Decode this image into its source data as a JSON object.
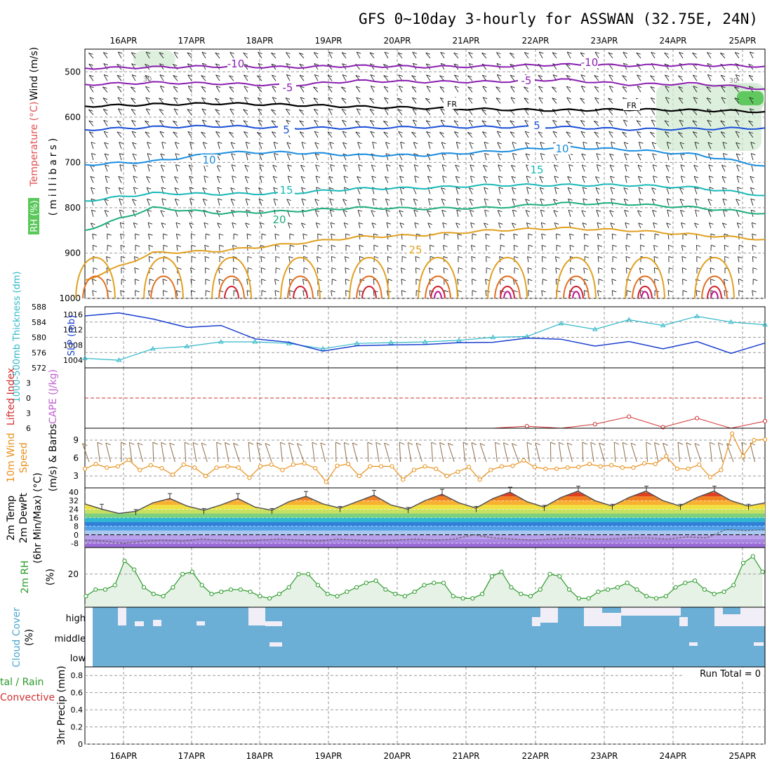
{
  "title": "GFS 0~10day 3-hourly for ASSWAN (32.75E, 24N)",
  "dates": [
    "16APR",
    "17APR",
    "18APR",
    "19APR",
    "20APR",
    "21APR",
    "22APR",
    "23APR",
    "24APR",
    "25APR"
  ],
  "colors": {
    "temp_minus10": "#8a1fb0",
    "temp_minus5": "#8a1fb0",
    "freezing": "#000000",
    "temp_5": "#1a4fd6",
    "temp_10": "#1a8de0",
    "temp_15": "#19b8b8",
    "temp_20": "#1fae7c",
    "temp_25": "#e0a020",
    "temp_hot": "#d02030",
    "slp": "#1a3fd0",
    "thickness": "#30b8c8",
    "wind10": "#e8901a",
    "barb": "#8b6b4a",
    "rh2m": "#2a9a2a",
    "rh2m_fill": "#e6f2e6",
    "cloud": "#6baed6",
    "cloud_gap": "#f2eef8",
    "lifted": "#d03030"
  },
  "labels": {
    "upper_rh": "RH (%)",
    "upper_temp": "Temperature (°C)",
    "upper_wind": "Wind (m/s)",
    "upper_unit": "(millibars)",
    "thk_label": "1000-500mb Thickness (dm)",
    "slp_label": "SLP (mb)",
    "li_label": "Lifted Index",
    "cape_label": "CAPE (J/kg)",
    "wind10_label_1": "10m Wind",
    "wind10_label_2": "Speed",
    "wind10_label_3": "(m/s) & Barbs",
    "temp2m_label_1": "2m Temp",
    "temp2m_label_2": "2m DewPt",
    "temp2m_label_3": "(6hr Min/Max) (°C)",
    "rh2m_label": "2m RH",
    "rh2m_unit": "(%)",
    "cloud_label": "Cloud Cover",
    "cloud_unit": "(%)",
    "precip_label_1": "tal / Rain",
    "precip_label_2": "Convective",
    "precip_label_3": "3hr Precip (mm)",
    "run_total": "Run Total = 0"
  },
  "chart_data": [
    {
      "type": "line",
      "panel": "upper-air",
      "ylabel": "(millibars)",
      "yticks": [
        500,
        600,
        700,
        800,
        900,
        1000
      ],
      "ylim": [
        1000,
        450
      ],
      "contour_labels": [
        {
          "text": "-10",
          "level": -10
        },
        {
          "text": "-10",
          "level": -10
        },
        {
          "text": "-5",
          "level": -5
        },
        {
          "text": "-5",
          "level": -5
        },
        {
          "text": "FR",
          "level": 0
        },
        {
          "text": "FR",
          "level": 0
        },
        {
          "text": "5",
          "level": 5
        },
        {
          "text": "5",
          "level": 5
        },
        {
          "text": "10",
          "level": 10
        },
        {
          "text": "10",
          "level": 10
        },
        {
          "text": "15",
          "level": 15
        },
        {
          "text": "15",
          "level": 15
        },
        {
          "text": "20",
          "level": 20
        },
        {
          "text": "25",
          "level": 25
        }
      ],
      "rh_labels": [
        "30",
        "30"
      ],
      "isotherm_pressure": {
        "minus10": [
          492,
          490,
          488,
          490,
          487,
          489,
          488,
          484,
          486,
          485,
          488
        ],
        "minus5": [
          528,
          524,
          526,
          530,
          520,
          522,
          522,
          517,
          528,
          526,
          538
        ],
        "freezing": [
          576,
          572,
          570,
          573,
          577,
          580,
          583,
          585,
          583,
          585,
          588
        ],
        "plus5": [
          628,
          622,
          620,
          624,
          624,
          622,
          622,
          622,
          627,
          626,
          624
        ],
        "plus10": [
          705,
          698,
          678,
          678,
          684,
          684,
          676,
          666,
          672,
          683,
          708
        ],
        "plus15": [
          785,
          768,
          770,
          768,
          758,
          756,
          750,
          750,
          750,
          756,
          773
        ],
        "plus20": [
          850,
          800,
          812,
          808,
          800,
          802,
          800,
          790,
          792,
          800,
          813
        ],
        "plus25": [
          960,
          900,
          895,
          880,
          865,
          860,
          850,
          845,
          850,
          860,
          870
        ]
      }
    },
    {
      "type": "line",
      "panel": "slp-thickness",
      "x": [
        "15APR12",
        "16APR00",
        "16APR12",
        "17APR00",
        "17APR12",
        "18APR00",
        "18APR12",
        "19APR00",
        "19APR12",
        "20APR00",
        "20APR12",
        "21APR00",
        "21APR12",
        "22APR00",
        "22APR12",
        "23APR00",
        "23APR12",
        "24APR00",
        "24APR12",
        "25APR00",
        "25APR06"
      ],
      "series": [
        {
          "name": "SLP (mb)",
          "axis": "right",
          "ylim": [
            1002,
            1018
          ],
          "yticks": [
            1004,
            1008,
            1012,
            1016
          ],
          "values": [
            1015.6,
            1016.4,
            1014.8,
            1012.6,
            1013.1,
            1009.6,
            1008.7,
            1006.4,
            1007.8,
            1008.0,
            1008.1,
            1008.6,
            1008.7,
            1009.8,
            1009.5,
            1007.7,
            1008.9,
            1007.0,
            1008.9,
            1005.8,
            1008.5
          ]
        },
        {
          "name": "1000-500mb Thickness (dm)",
          "axis": "left",
          "ylim": [
            572,
            588
          ],
          "yticks": [
            572,
            576,
            580,
            584,
            588
          ],
          "values": [
            574.5,
            574.0,
            577.0,
            577.6,
            578.8,
            578.8,
            578.4,
            577.0,
            578.4,
            578.6,
            578.8,
            579.2,
            580.0,
            580.2,
            583.6,
            582.1,
            584.6,
            583.1,
            585.5,
            584.0,
            583.3
          ]
        }
      ]
    },
    {
      "type": "line",
      "panel": "lifted-index-cape",
      "ylim": [
        6,
        -6
      ],
      "yticks": [
        -3,
        0,
        3,
        6
      ],
      "ytick_labels": [
        "3",
        "0",
        "3",
        "6"
      ],
      "zero_line": 0,
      "series": [
        {
          "name": "Lifted Index",
          "values": [
            6,
            6,
            6,
            6,
            6,
            6,
            6,
            6,
            6,
            6,
            6,
            6,
            6,
            5.6,
            6,
            5.2,
            3.7,
            5.8,
            4.0,
            6,
            4.6
          ]
        }
      ]
    },
    {
      "type": "line",
      "panel": "wind10m",
      "ylabel": "(m/s)",
      "ylim": [
        1,
        11
      ],
      "yticks": [
        3,
        6,
        9
      ],
      "series": [
        {
          "name": "10m Wind Speed",
          "values": [
            4.2,
            5.0,
            4.4,
            4.6,
            5.7,
            4.0,
            4.8,
            4.3,
            3.2,
            4.9,
            4.4,
            3.0,
            4.4,
            4.6,
            4.4,
            2.7,
            4.6,
            4.9,
            4.0,
            4.9,
            5.1,
            4.3,
            2.0,
            4.7,
            5.0,
            3.0,
            4.6,
            4.6,
            4.6,
            2.4,
            4.0,
            4.6,
            4.2,
            3.0,
            3.7,
            4.5,
            2.4,
            4.0,
            4.6,
            4.7,
            5.6,
            4.5,
            4.2,
            4.2,
            4.4,
            4.5,
            5.0,
            4.6,
            4.8,
            4.4,
            4.4,
            5.1,
            5.0,
            6.3,
            4.2,
            4.2,
            4.9,
            2.8,
            4.0,
            10.1,
            6.3,
            9.0,
            9.1
          ]
        }
      ]
    },
    {
      "type": "area",
      "panel": "temp2m",
      "ylabel": "(°C)",
      "ylim": [
        -12,
        44
      ],
      "yticks": [
        -8,
        0,
        8,
        16,
        24,
        32,
        40
      ],
      "series": [
        {
          "name": "2m Temp",
          "values": [
            29,
            24,
            20,
            22,
            30,
            34,
            27,
            23,
            28,
            34,
            26,
            23,
            31,
            36,
            29,
            25,
            31,
            37,
            28,
            24,
            32,
            38,
            30,
            25,
            34,
            40,
            31,
            26,
            35,
            41,
            32,
            27,
            35,
            41,
            32,
            27,
            35,
            41,
            32,
            27,
            30
          ]
        },
        {
          "name": "2m DewPt",
          "values": [
            -5,
            -6,
            -8,
            -6,
            -5,
            -6,
            -4,
            -5,
            -6,
            -5,
            -4,
            -5,
            -6,
            -4,
            -5,
            -6,
            -5,
            -4,
            -5,
            -4,
            0,
            -3,
            -4,
            -5,
            -4,
            -3,
            -4,
            -4,
            -3,
            -3,
            -4,
            -2,
            -3,
            5,
            4,
            5
          ]
        }
      ]
    },
    {
      "type": "area",
      "panel": "rh2m",
      "ylabel": "(%)",
      "ylim": [
        5,
        32
      ],
      "yticks": [
        20
      ],
      "series": [
        {
          "name": "2m RH",
          "values": [
            10,
            13,
            13,
            15,
            26,
            22,
            14,
            11,
            10,
            14,
            20,
            21,
            15,
            11,
            12,
            13,
            13,
            12,
            10,
            9,
            11,
            14,
            20,
            20,
            15,
            11,
            10,
            12,
            14,
            16,
            17,
            13,
            11,
            10,
            12,
            15,
            16,
            16,
            10,
            9,
            9,
            11,
            19,
            21,
            14,
            11,
            10,
            13,
            20,
            19,
            13,
            9,
            9,
            12,
            13,
            14,
            16,
            13,
            10,
            9,
            10,
            14,
            16,
            17,
            13,
            11,
            12,
            15,
            25,
            28,
            21
          ]
        }
      ]
    },
    {
      "type": "heatmap",
      "panel": "cloud-cover",
      "ylabel": "(%)",
      "ytick_labels": [
        "high",
        "middle",
        "low"
      ],
      "series": [
        {
          "name": "Cloud Cover (high gaps)",
          "notes": "mostly full coverage with clearing in high layer around 16APR, 18APR, 22APR-25APR"
        }
      ]
    },
    {
      "type": "bar",
      "panel": "precip",
      "ylabel": "3hr Precip (mm)",
      "ylim": [
        0,
        0.9
      ],
      "yticks": [
        0,
        0.2,
        0.4,
        0.6,
        0.8
      ],
      "values": [],
      "annotation": "Run Total = 0"
    }
  ]
}
